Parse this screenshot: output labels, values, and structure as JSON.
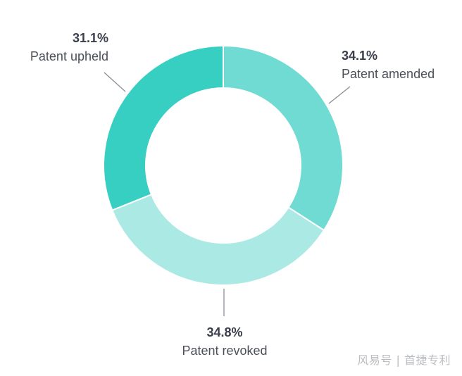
{
  "chart_data": {
    "type": "pie",
    "variant": "donut",
    "categories": [
      "Patent amended",
      "Patent revoked",
      "Patent upheld"
    ],
    "values": [
      34.1,
      34.8,
      31.1
    ],
    "value_labels": [
      "34.1%",
      "34.8%",
      "31.1%"
    ],
    "colors": [
      "#6fdbd3",
      "#abe9e4",
      "#36cfc2"
    ],
    "start_angle_deg": 0,
    "direction": "clockwise",
    "legend": "none",
    "title": ""
  },
  "style": {
    "pct_color": "#3a3f4b",
    "label_color": "#4a4f59",
    "leader_color": "#8a8f96"
  },
  "watermark": "风易号 | 首捷专利"
}
